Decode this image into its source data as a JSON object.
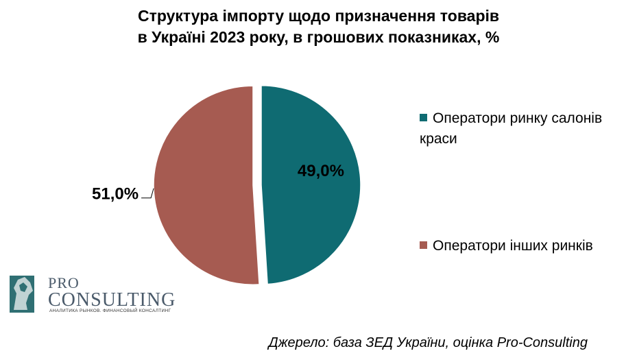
{
  "title_lines": [
    "Структура імпорту щодо призначення товарів",
    "в Україні 2023 року, в грошових показниках, %"
  ],
  "chart_data": {
    "type": "pie",
    "title": "Структура імпорту щодо призначення товарів в Україні 2023 року, в грошових показниках, %",
    "categories": [
      "Оператори ринку салонів краси",
      "Оператори інших ринків"
    ],
    "values": [
      49.0,
      51.0
    ],
    "data_labels": [
      "49,0%",
      "51,0%"
    ],
    "colors": [
      "#0f6b72",
      "#a65b51"
    ],
    "exploded": true,
    "legend_position": "right"
  },
  "legend": [
    {
      "label_line1": "Оператори ринку салонів",
      "label_line2": "краси",
      "color": "#0f6b72"
    },
    {
      "label_line1": "Оператори інших ринків",
      "label_line2": "",
      "color": "#a65b51"
    }
  ],
  "logo": {
    "pro": "PRO",
    "consulting": "CONSULTING",
    "tagline": "АНАЛИТИКА РЫНКОВ. ФИНАНСОВЫЙ КОНСАЛТИНГ",
    "icon": "horse-head-icon"
  },
  "source": "Джерело: база ЗЕД України, оцінка Pro-Consulting"
}
